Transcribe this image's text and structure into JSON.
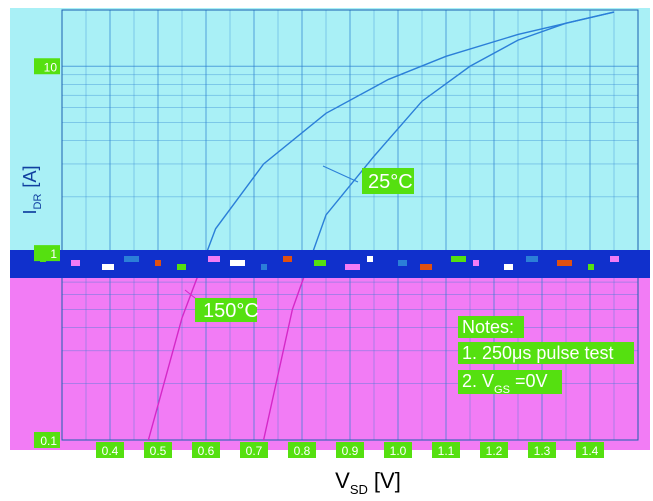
{
  "chart_data": {
    "type": "line",
    "x_scale": "linear",
    "y_scale": "log",
    "xlim": [
      0.3,
      1.5
    ],
    "ylim": [
      0.1,
      20
    ],
    "x_ticks": [
      "0.4",
      "0.5",
      "0.6",
      "0.7",
      "0.8",
      "0.9",
      "1.0",
      "1.1",
      "1.2",
      "1.3",
      "1.4"
    ],
    "y_ticks": [
      "0.1",
      "1",
      "10"
    ],
    "xlabel": {
      "main": "V",
      "sub": "SD",
      "unit": "[V]"
    },
    "ylabel": {
      "main": "I",
      "sub": "DR",
      "unit": "[A]"
    },
    "series": [
      {
        "name": "25°C",
        "x": [
          0.72,
          0.78,
          0.85,
          0.95,
          1.05,
          1.15,
          1.25,
          1.35,
          1.45
        ],
        "y": [
          0.1,
          0.5,
          1.6,
          3.3,
          6.5,
          10,
          13.8,
          17,
          19.5
        ]
      },
      {
        "name": "150°C",
        "x": [
          0.48,
          0.55,
          0.62,
          0.72,
          0.85,
          0.98,
          1.1,
          1.25,
          1.45
        ],
        "y": [
          0.1,
          0.45,
          1.35,
          3.0,
          5.6,
          8.5,
          11.3,
          14.8,
          19.5
        ]
      }
    ],
    "annotations": {
      "curve_25": "25°C",
      "curve_150": "150°C",
      "notes_title": "Notes:",
      "note_1": "1. 250μs pulse test",
      "note_2_main": "2. V",
      "note_2_sub": "GS",
      "note_2_rest": " =0V"
    },
    "grid": true,
    "colors": {
      "top_panel": "#a9f0f6",
      "bottom_panel": "#f27cf5",
      "band": "#1030cc",
      "line_top": "#2b7fd8",
      "line_bottom": "#d528c8",
      "label_bg": "#55e010"
    }
  }
}
